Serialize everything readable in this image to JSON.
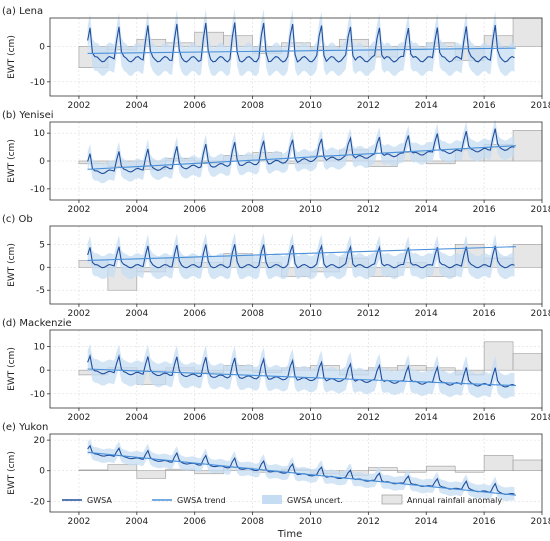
{
  "figure": {
    "xlabel": "Time",
    "x_ticks": [
      2002,
      2004,
      2006,
      2008,
      2010,
      2012,
      2014,
      2016,
      2018
    ],
    "colors": {
      "gwsa": "#1f4e9c",
      "trend": "#4a90d9",
      "uncert": "#c6dcf2",
      "rain_fill": "#e6e6e6",
      "rain_edge": "#9a9a9a"
    },
    "legend": {
      "placement": "bottom",
      "items": [
        "GWSA",
        "GWSA trend",
        "GWSA uncert.",
        "Annual rainfall anomaly"
      ]
    }
  },
  "chart_data": [
    {
      "type": "line",
      "panel": "(a) Lena",
      "ylabel": "EWT (cm)",
      "xlim": [
        2001,
        2018
      ],
      "ylim": [
        -14,
        8
      ],
      "y_ticks": [
        -10,
        0
      ],
      "grid": true,
      "gwsa": {
        "amp": 6.5,
        "base": -2,
        "slope": 0
      },
      "trend": {
        "start": [
          2002.3,
          -2.0
        ],
        "end": [
          2017.1,
          -0.5
        ]
      },
      "uncert_halfwidth": 4,
      "rainfall_anomaly": [
        {
          "year": 2002,
          "value": -6
        },
        {
          "year": 2003,
          "value": -1
        },
        {
          "year": 2004,
          "value": 2
        },
        {
          "year": 2005,
          "value": 1
        },
        {
          "year": 2006,
          "value": 4
        },
        {
          "year": 2007,
          "value": 3
        },
        {
          "year": 2008,
          "value": -2
        },
        {
          "year": 2009,
          "value": 1
        },
        {
          "year": 2010,
          "value": -1
        },
        {
          "year": 2011,
          "value": 2
        },
        {
          "year": 2012,
          "value": -3
        },
        {
          "year": 2013,
          "value": -1
        },
        {
          "year": 2014,
          "value": 1
        },
        {
          "year": 2015,
          "value": -4
        },
        {
          "year": 2016,
          "value": 3
        },
        {
          "year": 2017,
          "value": 8
        }
      ]
    },
    {
      "type": "line",
      "panel": "(b) Yenisei",
      "ylabel": "EWT (cm)",
      "xlim": [
        2001,
        2018
      ],
      "ylim": [
        -14,
        14
      ],
      "y_ticks": [
        -10,
        0,
        10
      ],
      "grid": true,
      "gwsa": {
        "amp": 5,
        "base": -3,
        "slope": 0.6
      },
      "trend": {
        "start": [
          2002.3,
          -3.0
        ],
        "end": [
          2017.1,
          5.5
        ]
      },
      "uncert_halfwidth": 3.5,
      "rainfall_anomaly": [
        {
          "year": 2002,
          "value": -1
        },
        {
          "year": 2003,
          "value": -2
        },
        {
          "year": 2004,
          "value": -3
        },
        {
          "year": 2005,
          "value": 1
        },
        {
          "year": 2006,
          "value": -1
        },
        {
          "year": 2007,
          "value": 2
        },
        {
          "year": 2008,
          "value": 3
        },
        {
          "year": 2009,
          "value": -1
        },
        {
          "year": 2010,
          "value": 2
        },
        {
          "year": 2011,
          "value": 4
        },
        {
          "year": 2012,
          "value": -2
        },
        {
          "year": 2013,
          "value": 3
        },
        {
          "year": 2014,
          "value": -1
        },
        {
          "year": 2015,
          "value": 4
        },
        {
          "year": 2016,
          "value": 6
        },
        {
          "year": 2017,
          "value": 11
        }
      ]
    },
    {
      "type": "line",
      "panel": "(c) Ob",
      "ylabel": "EWT (cm)",
      "xlim": [
        2001,
        2018
      ],
      "ylim": [
        -8,
        9
      ],
      "y_ticks": [
        -5,
        0,
        5
      ],
      "grid": true,
      "gwsa": {
        "amp": 3,
        "base": 1,
        "slope": 0
      },
      "trend": {
        "start": [
          2002.3,
          1.5
        ],
        "end": [
          2017.1,
          4.5
        ]
      },
      "uncert_halfwidth": 2.5,
      "rainfall_anomaly": [
        {
          "year": 2002,
          "value": 1.5
        },
        {
          "year": 2003,
          "value": -5
        },
        {
          "year": 2004,
          "value": -1
        },
        {
          "year": 2005,
          "value": 2
        },
        {
          "year": 2006,
          "value": 1
        },
        {
          "year": 2007,
          "value": 3
        },
        {
          "year": 2008,
          "value": 1
        },
        {
          "year": 2009,
          "value": -2
        },
        {
          "year": 2010,
          "value": -1
        },
        {
          "year": 2011,
          "value": 2
        },
        {
          "year": 2012,
          "value": -2
        },
        {
          "year": 2013,
          "value": 1
        },
        {
          "year": 2014,
          "value": -2
        },
        {
          "year": 2015,
          "value": 5
        },
        {
          "year": 2016,
          "value": 2
        },
        {
          "year": 2017,
          "value": 5
        }
      ]
    },
    {
      "type": "line",
      "panel": "(d) Mackenzie",
      "ylabel": "EWT (cm)",
      "xlim": [
        2001,
        2018
      ],
      "ylim": [
        -16,
        17
      ],
      "y_ticks": [
        -10,
        0,
        10
      ],
      "grid": true,
      "gwsa": {
        "amp": 5,
        "base": 0.5,
        "slope": -0.4
      },
      "trend": {
        "start": [
          2002.3,
          0.5
        ],
        "end": [
          2017.1,
          -6.5
        ]
      },
      "uncert_halfwidth": 5,
      "rainfall_anomaly": [
        {
          "year": 2002,
          "value": -2
        },
        {
          "year": 2003,
          "value": 1
        },
        {
          "year": 2004,
          "value": -6
        },
        {
          "year": 2005,
          "value": 1
        },
        {
          "year": 2006,
          "value": -1
        },
        {
          "year": 2007,
          "value": 2
        },
        {
          "year": 2008,
          "value": -1
        },
        {
          "year": 2009,
          "value": 1
        },
        {
          "year": 2010,
          "value": 2
        },
        {
          "year": 2011,
          "value": -2
        },
        {
          "year": 2012,
          "value": 1
        },
        {
          "year": 2013,
          "value": 2
        },
        {
          "year": 2014,
          "value": 1
        },
        {
          "year": 2015,
          "value": -2
        },
        {
          "year": 2016,
          "value": 12
        },
        {
          "year": 2017,
          "value": 7
        }
      ]
    },
    {
      "type": "line",
      "panel": "(e) Yukon",
      "ylabel": "EWT (cm)",
      "xlim": [
        2001,
        2018
      ],
      "ylim": [
        -27,
        24
      ],
      "y_ticks": [
        -20,
        0,
        20
      ],
      "grid": true,
      "gwsa": {
        "amp": 4,
        "base": 12,
        "slope": -1.8
      },
      "trend": {
        "start": [
          2002.3,
          12.0
        ],
        "end": [
          2017.1,
          -16.0
        ]
      },
      "uncert_halfwidth": 4.5,
      "rainfall_anomaly": [
        {
          "year": 2002,
          "value": 0.5
        },
        {
          "year": 2003,
          "value": 4
        },
        {
          "year": 2004,
          "value": -5
        },
        {
          "year": 2005,
          "value": 1
        },
        {
          "year": 2006,
          "value": -2
        },
        {
          "year": 2007,
          "value": 2
        },
        {
          "year": 2008,
          "value": -1
        },
        {
          "year": 2009,
          "value": 1
        },
        {
          "year": 2010,
          "value": -2
        },
        {
          "year": 2011,
          "value": -3
        },
        {
          "year": 2012,
          "value": 2
        },
        {
          "year": 2013,
          "value": -1
        },
        {
          "year": 2014,
          "value": 3
        },
        {
          "year": 2015,
          "value": -1
        },
        {
          "year": 2016,
          "value": 10
        },
        {
          "year": 2017,
          "value": 7
        }
      ]
    }
  ]
}
